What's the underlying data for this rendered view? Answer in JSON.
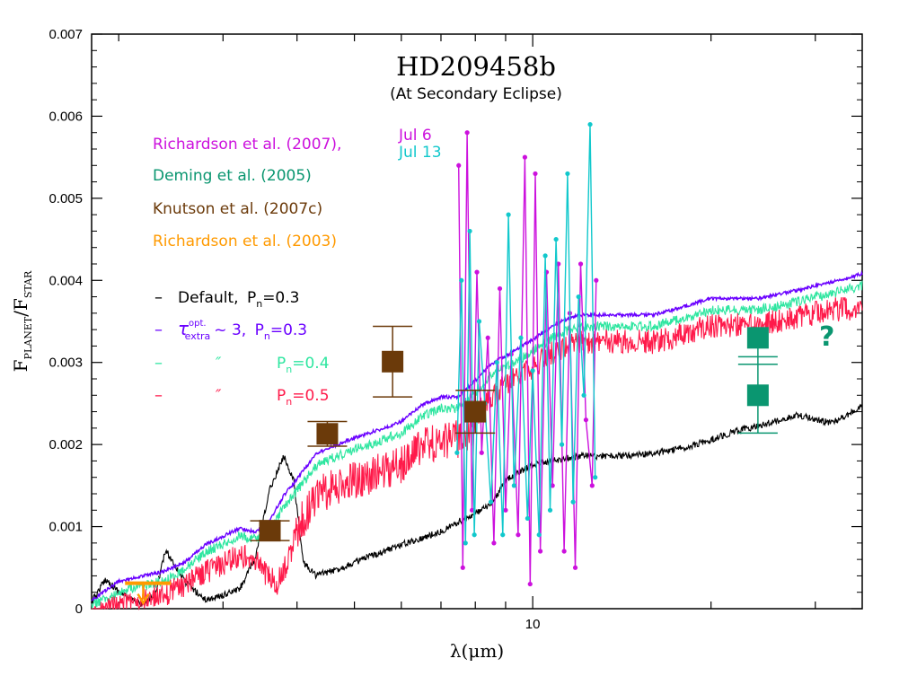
{
  "colors": {
    "default": "#000000",
    "extra_03": "#6a00ff",
    "extra_04": "#2ee6a0",
    "extra_05": "#ff1a4a",
    "richardson2007_jul6": "#cc11dd",
    "richardson2007_jul13": "#11c8cc",
    "deming2005": "#0a9670",
    "knutson2007c": "#6b3a0a",
    "richardson2003": "#ff9a00"
  },
  "chart_data": {
    "type": "line",
    "title": "HD209458b",
    "subtitle": "(At Secondary Eclipse)",
    "xlabel": "λ(μm)",
    "ylabel_main": "F",
    "ylabel_sub1": "PLANET",
    "ylabel_sep": "/F",
    "ylabel_sub2": "STAR",
    "x_scale": "log",
    "xlim": [
      1.8,
      36
    ],
    "ylim": [
      0,
      0.007
    ],
    "x_ticks": [
      {
        "value": 10,
        "label": "10"
      }
    ],
    "y_ticks": [
      {
        "value": 0,
        "label": "0"
      },
      {
        "value": 0.001,
        "label": "0.001"
      },
      {
        "value": 0.002,
        "label": "0.002"
      },
      {
        "value": 0.003,
        "label": "0.003"
      },
      {
        "value": 0.004,
        "label": "0.004"
      },
      {
        "value": 0.005,
        "label": "0.005"
      },
      {
        "value": 0.006,
        "label": "0.006"
      },
      {
        "value": 0.007,
        "label": "0.007"
      }
    ],
    "model_series": [
      {
        "key": "default",
        "name": "Default, P=0.3",
        "points": [
          [
            1.8,
            0.00012
          ],
          [
            1.9,
            0.0004
          ],
          [
            2.0,
            0.00025
          ],
          [
            2.1,
            0.00015
          ],
          [
            2.2,
            0.0001
          ],
          [
            2.3,
            0.0002
          ],
          [
            2.4,
            0.00075
          ],
          [
            2.5,
            0.00055
          ],
          [
            2.6,
            0.00035
          ],
          [
            2.8,
            0.00015
          ],
          [
            3.0,
            0.0002
          ],
          [
            3.2,
            0.00028
          ],
          [
            3.4,
            0.00065
          ],
          [
            3.6,
            0.0015
          ],
          [
            3.8,
            0.0019
          ],
          [
            3.95,
            0.0016
          ],
          [
            4.1,
            0.0006
          ],
          [
            4.3,
            0.00045
          ],
          [
            4.6,
            0.0005
          ],
          [
            5.0,
            0.0006
          ],
          [
            5.5,
            0.00072
          ],
          [
            6.0,
            0.00082
          ],
          [
            6.5,
            0.0009
          ],
          [
            7.0,
            0.00098
          ],
          [
            7.5,
            0.0011
          ],
          [
            8.0,
            0.0012
          ],
          [
            8.5,
            0.0013
          ],
          [
            9.0,
            0.0016
          ],
          [
            10.0,
            0.0018
          ],
          [
            11.0,
            0.00185
          ],
          [
            12.0,
            0.0019
          ],
          [
            14.0,
            0.0019
          ],
          [
            16.0,
            0.00193
          ],
          [
            18.0,
            0.002
          ],
          [
            20.0,
            0.0021
          ],
          [
            22.0,
            0.0022
          ],
          [
            25.0,
            0.0023
          ],
          [
            28.0,
            0.0024
          ],
          [
            32.0,
            0.0023
          ],
          [
            36.0,
            0.0025
          ]
        ]
      },
      {
        "key": "extra_03",
        "name": "τ_extra^opt ~ 3, P=0.3",
        "points": [
          [
            1.8,
            0.00012
          ],
          [
            2.0,
            0.00035
          ],
          [
            2.2,
            0.00042
          ],
          [
            2.4,
            0.00048
          ],
          [
            2.6,
            0.0006
          ],
          [
            2.8,
            0.0008
          ],
          [
            3.0,
            0.0009
          ],
          [
            3.2,
            0.001
          ],
          [
            3.4,
            0.00095
          ],
          [
            3.6,
            0.0011
          ],
          [
            3.8,
            0.0014
          ],
          [
            4.0,
            0.0016
          ],
          [
            4.3,
            0.0019
          ],
          [
            4.6,
            0.002
          ],
          [
            5.0,
            0.0021
          ],
          [
            5.5,
            0.0022
          ],
          [
            6.0,
            0.0023
          ],
          [
            6.5,
            0.0025
          ],
          [
            7.0,
            0.0026
          ],
          [
            7.5,
            0.0026
          ],
          [
            8.0,
            0.0028
          ],
          [
            8.5,
            0.003
          ],
          [
            9.0,
            0.0031
          ],
          [
            9.5,
            0.0032
          ],
          [
            10.0,
            0.0033
          ],
          [
            11.0,
            0.0035
          ],
          [
            12.0,
            0.0036
          ],
          [
            14.0,
            0.0036
          ],
          [
            16.0,
            0.0036
          ],
          [
            18.0,
            0.0037
          ],
          [
            20.0,
            0.0038
          ],
          [
            24.0,
            0.0038
          ],
          [
            28.0,
            0.0039
          ],
          [
            32.0,
            0.004
          ],
          [
            36.0,
            0.0041
          ]
        ]
      },
      {
        "key": "extra_04",
        "name": "P=0.4",
        "points": [
          [
            1.8,
            0.0001
          ],
          [
            2.0,
            0.00025
          ],
          [
            2.2,
            0.00035
          ],
          [
            2.4,
            0.0004
          ],
          [
            2.6,
            0.00055
          ],
          [
            2.8,
            0.00075
          ],
          [
            3.0,
            0.00085
          ],
          [
            3.2,
            0.00095
          ],
          [
            3.4,
            0.0009
          ],
          [
            3.6,
            0.001
          ],
          [
            3.8,
            0.0013
          ],
          [
            4.0,
            0.0015
          ],
          [
            4.3,
            0.0018
          ],
          [
            4.6,
            0.0019
          ],
          [
            5.0,
            0.002
          ],
          [
            5.5,
            0.0021
          ],
          [
            6.0,
            0.0022
          ],
          [
            6.5,
            0.0024
          ],
          [
            7.0,
            0.0025
          ],
          [
            7.5,
            0.0025
          ],
          [
            8.0,
            0.0027
          ],
          [
            8.5,
            0.0029
          ],
          [
            9.0,
            0.003
          ],
          [
            9.5,
            0.0031
          ],
          [
            10.0,
            0.0032
          ],
          [
            11.0,
            0.0034
          ],
          [
            12.0,
            0.0035
          ],
          [
            14.0,
            0.0035
          ],
          [
            16.0,
            0.0035
          ],
          [
            18.0,
            0.0036
          ],
          [
            20.0,
            0.0037
          ],
          [
            24.0,
            0.0037
          ],
          [
            28.0,
            0.0038
          ],
          [
            32.0,
            0.0039
          ],
          [
            36.0,
            0.004
          ]
        ]
      },
      {
        "key": "extra_05",
        "name": "P=0.5",
        "points": [
          [
            1.8,
            5e-05
          ],
          [
            2.0,
            0.00018
          ],
          [
            2.2,
            0.00028
          ],
          [
            2.4,
            0.00033
          ],
          [
            2.6,
            0.00045
          ],
          [
            2.8,
            0.0006
          ],
          [
            3.0,
            0.0007
          ],
          [
            3.2,
            0.0008
          ],
          [
            3.4,
            0.00075
          ],
          [
            3.5,
            0.0006
          ],
          [
            3.7,
            0.00045
          ],
          [
            3.9,
            0.0008
          ],
          [
            4.0,
            0.0012
          ],
          [
            4.3,
            0.0016
          ],
          [
            4.6,
            0.0017
          ],
          [
            5.0,
            0.0018
          ],
          [
            5.5,
            0.0019
          ],
          [
            6.0,
            0.002
          ],
          [
            6.5,
            0.0022
          ],
          [
            7.0,
            0.0023
          ],
          [
            7.5,
            0.0023
          ],
          [
            8.0,
            0.0025
          ],
          [
            8.5,
            0.0027
          ],
          [
            9.0,
            0.0029
          ],
          [
            9.5,
            0.003
          ],
          [
            10.0,
            0.0031
          ],
          [
            11.0,
            0.0033
          ],
          [
            12.0,
            0.0034
          ],
          [
            14.0,
            0.0034
          ],
          [
            16.0,
            0.0034
          ],
          [
            18.0,
            0.0035
          ],
          [
            20.0,
            0.0036
          ],
          [
            24.0,
            0.0036
          ],
          [
            28.0,
            0.0037
          ],
          [
            32.0,
            0.0038
          ],
          [
            36.0,
            0.0038
          ]
        ]
      }
    ],
    "richardson2007": [
      {
        "key": "richardson2007_jul6",
        "name": "Jul 6",
        "points": [
          [
            7.5,
            0.0054
          ],
          [
            7.62,
            0.0005
          ],
          [
            7.75,
            0.0058
          ],
          [
            7.9,
            0.0012
          ],
          [
            8.05,
            0.0041
          ],
          [
            8.2,
            0.0019
          ],
          [
            8.4,
            0.0033
          ],
          [
            8.6,
            0.0008
          ],
          [
            8.8,
            0.0039
          ],
          [
            9.0,
            0.0012
          ],
          [
            9.2,
            0.0031
          ],
          [
            9.45,
            0.0009
          ],
          [
            9.7,
            0.0055
          ],
          [
            9.9,
            0.0003
          ],
          [
            10.1,
            0.0053
          ],
          [
            10.3,
            0.0007
          ],
          [
            10.55,
            0.0041
          ],
          [
            10.8,
            0.0015
          ],
          [
            11.05,
            0.0042
          ],
          [
            11.3,
            0.0007
          ],
          [
            11.55,
            0.0036
          ],
          [
            11.8,
            0.0005
          ],
          [
            12.05,
            0.0042
          ],
          [
            12.3,
            0.0023
          ],
          [
            12.6,
            0.0015
          ],
          [
            12.8,
            0.004
          ]
        ]
      },
      {
        "key": "richardson2007_jul13",
        "name": "Jul 13",
        "points": [
          [
            7.45,
            0.0019
          ],
          [
            7.58,
            0.004
          ],
          [
            7.7,
            0.0008
          ],
          [
            7.83,
            0.0046
          ],
          [
            7.97,
            0.0009
          ],
          [
            8.12,
            0.0035
          ],
          [
            8.3,
            0.0025
          ],
          [
            8.5,
            0.0013
          ],
          [
            8.7,
            0.003
          ],
          [
            8.9,
            0.0009
          ],
          [
            9.1,
            0.0048
          ],
          [
            9.3,
            0.0015
          ],
          [
            9.55,
            0.0033
          ],
          [
            9.8,
            0.0011
          ],
          [
            10.0,
            0.0029
          ],
          [
            10.25,
            0.0009
          ],
          [
            10.5,
            0.0043
          ],
          [
            10.7,
            0.0012
          ],
          [
            10.95,
            0.0045
          ],
          [
            11.2,
            0.002
          ],
          [
            11.45,
            0.0053
          ],
          [
            11.7,
            0.0013
          ],
          [
            11.95,
            0.0038
          ],
          [
            12.2,
            0.0026
          ],
          [
            12.5,
            0.0059
          ],
          [
            12.75,
            0.0016
          ]
        ]
      }
    ],
    "knutson2007c": [
      {
        "x": 3.6,
        "y": 0.00095,
        "err": 0.00012
      },
      {
        "x": 4.5,
        "y": 0.00213,
        "err": 0.00015
      },
      {
        "x": 5.8,
        "y": 0.00301,
        "err": 0.00043
      },
      {
        "x": 8.0,
        "y": 0.0024,
        "err": 0.00026
      }
    ],
    "deming2005": [
      {
        "x": 24.0,
        "y": 0.0033,
        "y2": 0.0026,
        "err": 0.00046
      }
    ],
    "richardson2003": {
      "x1": 2.05,
      "x2": 2.45,
      "y": 0.00031,
      "arrow_x": 2.2
    },
    "question_mark": "?",
    "legend": {
      "richardson2007": "Richardson et al. (2007),",
      "jul6": "Jul 6",
      "jul13": "Jul 13",
      "deming2005": "Deming et al. (2005)",
      "knutson2007c": "Knutson et al. (2007c)",
      "richardson2003": "Richardson et al. (2003)",
      "dash": "–",
      "default_label": "Default,",
      "pn_label": "P",
      "pn_sub": "n",
      "pn_03": "=0.3",
      "pn_04": "=0.4",
      "pn_05": "=0.5",
      "tau": "τ",
      "tau_sup": "opt.",
      "tau_sub": "extra",
      "tilde_three": "~ 3,",
      "ditto": "″"
    }
  }
}
